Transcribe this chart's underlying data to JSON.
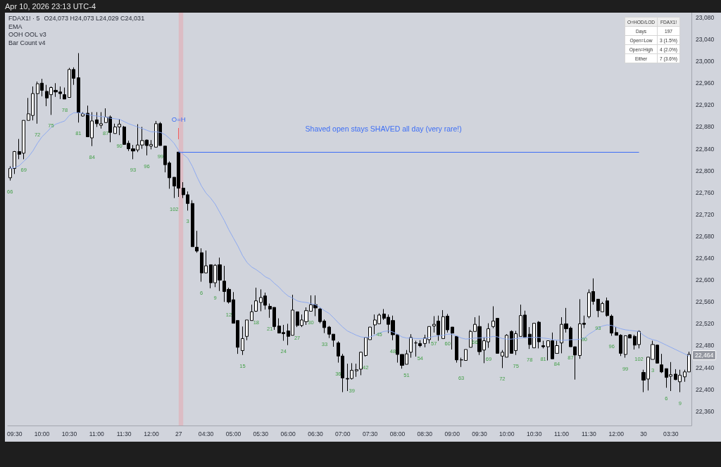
{
  "chart_data": {
    "type": "candlestick",
    "title": "FDAX1! · 5",
    "subtitle": "O24,073 H24,073 L24,029 C24,031",
    "categories": [
      null,
      "09:30",
      null,
      null,
      null,
      null,
      null,
      "10:00",
      null,
      null,
      null,
      null,
      null,
      "10:30",
      null,
      null,
      null,
      null,
      null,
      "11:00",
      null,
      null,
      null,
      null,
      null,
      "11:30",
      null,
      null,
      null,
      null,
      null,
      "12:00",
      null,
      null,
      null,
      null,
      null,
      "27",
      null,
      null,
      null,
      null,
      null,
      "04:30",
      null,
      null,
      null,
      null,
      null,
      "05:00",
      null,
      null,
      null,
      null,
      null,
      "05:30",
      null,
      null,
      null,
      null,
      null,
      "06:00",
      null,
      null,
      null,
      null,
      null,
      "06:30",
      null,
      null,
      null,
      null,
      null,
      "07:00",
      null,
      null,
      null,
      null,
      null,
      "07:30",
      null,
      null,
      null,
      null,
      null,
      "08:00",
      null,
      null,
      null,
      null,
      null,
      "08:30",
      null,
      null,
      null,
      null,
      null,
      "09:00",
      null,
      null,
      null,
      null,
      null,
      "09:30",
      null,
      null,
      null,
      null,
      null,
      "10:00",
      null,
      null,
      null,
      null,
      null,
      "10:30",
      null,
      null,
      null,
      null,
      null,
      "11:00",
      null,
      null,
      null,
      null,
      null,
      "11:30",
      null,
      null,
      null,
      null,
      null,
      "12:00",
      null,
      null,
      null,
      null,
      null,
      "30",
      null,
      null,
      null,
      null,
      null,
      "03:30",
      null,
      null,
      null,
      null
    ],
    "ohlc": [
      [
        22787,
        22808,
        22782,
        22804
      ],
      [
        22804,
        22836,
        22794,
        22835
      ],
      [
        22835,
        22858,
        22821,
        22830
      ],
      [
        22832,
        22892,
        22821,
        22892
      ],
      [
        22892,
        22933,
        22892,
        22904
      ],
      [
        22901,
        22954,
        22892,
        22941
      ],
      [
        22941,
        22963,
        22886,
        22959
      ],
      [
        22960,
        22968,
        22936,
        22947
      ],
      [
        22945,
        22957,
        22918,
        22933
      ],
      [
        22939,
        22954,
        22902,
        22952
      ],
      [
        22947,
        22960,
        22935,
        22944
      ],
      [
        22944,
        22954,
        22931,
        22941
      ],
      [
        22939,
        22952,
        22931,
        22931
      ],
      [
        22934,
        22988,
        22934,
        22985
      ],
      [
        22985,
        22989,
        22957,
        22969
      ],
      [
        22970,
        23015,
        22888,
        22906
      ],
      [
        22900,
        22907,
        22899,
        22904
      ],
      [
        22905,
        22919,
        22862,
        22862
      ],
      [
        22860,
        22907,
        22845,
        22891
      ],
      [
        22893,
        22907,
        22880,
        22886
      ],
      [
        22883,
        22907,
        22877,
        22886
      ],
      [
        22888,
        22914,
        22888,
        22898
      ],
      [
        22898,
        22901,
        22852,
        22870
      ],
      [
        22868,
        22886,
        22868,
        22880
      ],
      [
        22880,
        22894,
        22865,
        22885
      ],
      [
        22880,
        22882,
        22848,
        22848
      ],
      [
        22850,
        22855,
        22836,
        22840
      ],
      [
        22840,
        22847,
        22821,
        22836
      ],
      [
        22838,
        22885,
        22834,
        22847
      ],
      [
        22847,
        22880,
        22840,
        22855
      ],
      [
        22856,
        22857,
        22828,
        22846
      ],
      [
        22845,
        22856,
        22839,
        22848
      ],
      [
        22843,
        22891,
        22843,
        22886
      ],
      [
        22886,
        22889,
        22846,
        22846
      ],
      [
        22845,
        22845,
        22797,
        22811
      ],
      [
        22814,
        22817,
        22767,
        22787
      ],
      [
        22788,
        22788,
        22750,
        22772
      ],
      [
        22834,
        22834,
        22752,
        22768
      ],
      [
        22768,
        22779,
        22750,
        22756
      ],
      [
        22756,
        22762,
        22727,
        22740
      ],
      [
        22740,
        22746,
        22661,
        22661
      ],
      [
        22660,
        22690,
        22650,
        22653
      ],
      [
        22650,
        22658,
        22597,
        22613
      ],
      [
        22613,
        22654,
        22613,
        22626
      ],
      [
        22628,
        22628,
        22585,
        22595
      ],
      [
        22595,
        22629,
        22587,
        22627
      ],
      [
        22628,
        22641,
        22580,
        22600
      ],
      [
        22598,
        22626,
        22560,
        22579
      ],
      [
        22583,
        22586,
        22557,
        22560
      ],
      [
        22564,
        22578,
        22521,
        22521
      ],
      [
        22526,
        22526,
        22465,
        22477
      ],
      [
        22471,
        22515,
        22463,
        22493
      ],
      [
        22497,
        22527,
        22490,
        22527
      ],
      [
        22526,
        22555,
        22526,
        22542
      ],
      [
        22543,
        22586,
        22542,
        22562
      ],
      [
        22559,
        22583,
        22543,
        22568
      ],
      [
        22571,
        22577,
        22546,
        22554
      ],
      [
        22552,
        22557,
        22531,
        22547
      ],
      [
        22550,
        22550,
        22509,
        22515
      ],
      [
        22516,
        22530,
        22503,
        22503
      ],
      [
        22504,
        22518,
        22489,
        22502
      ],
      [
        22507,
        22520,
        22481,
        22497
      ],
      [
        22499,
        22573,
        22499,
        22545
      ],
      [
        22542,
        22542,
        22514,
        22517
      ],
      [
        22517,
        22537,
        22514,
        22527
      ],
      [
        22524,
        22550,
        22518,
        22544
      ],
      [
        22543,
        22572,
        22543,
        22555
      ],
      [
        22555,
        22572,
        22534,
        22549
      ],
      [
        22547,
        22549,
        22521,
        22524
      ],
      [
        22525,
        22528,
        22503,
        22513
      ],
      [
        22514,
        22516,
        22494,
        22501
      ],
      [
        22501,
        22501,
        22478,
        22490
      ],
      [
        22485,
        22488,
        22449,
        22461
      ],
      [
        22461,
        22465,
        22395,
        22421
      ],
      [
        22420,
        22447,
        22397,
        22419
      ],
      [
        22420,
        22448,
        22418,
        22435
      ],
      [
        22434,
        22447,
        22423,
        22436
      ],
      [
        22437,
        22469,
        22426,
        22468
      ],
      [
        22462,
        22495,
        22460,
        22495
      ],
      [
        22491,
        22514,
        22491,
        22514
      ],
      [
        22518,
        22537,
        22501,
        22527
      ],
      [
        22520,
        22539,
        22520,
        22536
      ],
      [
        22538,
        22547,
        22527,
        22530
      ],
      [
        22532,
        22537,
        22503,
        22519
      ],
      [
        22526,
        22535,
        22490,
        22500
      ],
      [
        22500,
        22501,
        22449,
        22464
      ],
      [
        22464,
        22464,
        22438,
        22444
      ],
      [
        22446,
        22472,
        22446,
        22465
      ],
      [
        22468,
        22501,
        22458,
        22495
      ],
      [
        22485,
        22489,
        22460,
        22485
      ],
      [
        22484,
        22490,
        22477,
        22480
      ],
      [
        22484,
        22500,
        22477,
        22494
      ],
      [
        22491,
        22515,
        22484,
        22515
      ],
      [
        22516,
        22534,
        22504,
        22519
      ],
      [
        22525,
        22535,
        22489,
        22500
      ],
      [
        22493,
        22545,
        22493,
        22533
      ],
      [
        22534,
        22538,
        22504,
        22509
      ],
      [
        22514,
        22514,
        22473,
        22503
      ],
      [
        22497,
        22497,
        22449,
        22454
      ],
      [
        22454,
        22458,
        22441,
        22454
      ],
      [
        22453,
        22473,
        22453,
        22473
      ],
      [
        22477,
        22509,
        22477,
        22506
      ],
      [
        22506,
        22532,
        22506,
        22519
      ],
      [
        22515,
        22535,
        22463,
        22469
      ],
      [
        22472,
        22495,
        22448,
        22489
      ],
      [
        22487,
        22521,
        22476,
        22511
      ],
      [
        22515,
        22552,
        22512,
        22525
      ],
      [
        22530,
        22530,
        22466,
        22466
      ],
      [
        22461,
        22472,
        22439,
        22468
      ],
      [
        22459,
        22501,
        22459,
        22499
      ],
      [
        22506,
        22508,
        22466,
        22466
      ],
      [
        22471,
        22507,
        22463,
        22502
      ],
      [
        22497,
        22555,
        22497,
        22535
      ],
      [
        22536,
        22544,
        22495,
        22495
      ],
      [
        22501,
        22514,
        22474,
        22482
      ],
      [
        22476,
        22521,
        22476,
        22521
      ],
      [
        22523,
        22525,
        22475,
        22487
      ],
      [
        22480,
        22489,
        22475,
        22478
      ],
      [
        22478,
        22489,
        22453,
        22489
      ],
      [
        22489,
        22504,
        22456,
        22456
      ],
      [
        22466,
        22489,
        22466,
        22480
      ],
      [
        22485,
        22532,
        22466,
        22519
      ],
      [
        22520,
        22549,
        22504,
        22511
      ],
      [
        22512,
        22515,
        22478,
        22478
      ],
      [
        22478,
        22478,
        22418,
        22463
      ],
      [
        22462,
        22565,
        22456,
        22520
      ],
      [
        22521,
        22535,
        22512,
        22519
      ],
      [
        22533,
        22583,
        22530,
        22577
      ],
      [
        22579,
        22603,
        22555,
        22561
      ],
      [
        22565,
        22565,
        22532,
        22544
      ],
      [
        22542,
        22560,
        22542,
        22557
      ],
      [
        22562,
        22568,
        22533,
        22535
      ],
      [
        22534,
        22537,
        22498,
        22503
      ],
      [
        22504,
        22514,
        22499,
        22499
      ],
      [
        22499,
        22501,
        22461,
        22466
      ],
      [
        22464,
        22499,
        22458,
        22498
      ],
      [
        22500,
        22501,
        22494,
        22494
      ],
      [
        22497,
        22500,
        22473,
        22481
      ],
      [
        22482,
        22508,
        22475,
        22506
      ],
      [
        22431,
        22436,
        22395,
        22417
      ],
      [
        22419,
        22459,
        22398,
        22459
      ],
      [
        22455,
        22489,
        22455,
        22482
      ],
      [
        22481,
        22482,
        22448,
        22448
      ],
      [
        22445,
        22465,
        22430,
        22432
      ],
      [
        22438,
        22438,
        22403,
        22422
      ],
      [
        22424,
        22450,
        22397,
        22427
      ],
      [
        22428,
        22437,
        22417,
        22418
      ],
      [
        22414,
        22436,
        22395,
        22426
      ],
      [
        22423,
        22436,
        22414,
        22432
      ],
      [
        22432,
        22469,
        22432,
        22464
      ]
    ],
    "colors": [
      "#ffffff",
      "#ffffff",
      "#000000",
      "#ffffff",
      "#ffffff",
      "#ffffff",
      "#ffffff",
      "#000000",
      "#000000",
      "#ffffff",
      "#000000",
      "#000000",
      "#000000",
      "#ffffff",
      "#000000",
      "#000000",
      "#ffffff",
      "#000000",
      "#ffffff",
      "#000000",
      "#ffffff",
      "#ffffff",
      "#000000",
      "#ffffff",
      "#ffffff",
      "#000000",
      "#000000",
      "#000000",
      "#ffffff",
      "#ffffff",
      "#000000",
      "#ffffff",
      "#ffffff",
      "#000000",
      "#000000",
      "#000000",
      "#000000",
      "#000000",
      "#000000",
      "#000000",
      "#000000",
      "#000000",
      "#000000",
      "#ffffff",
      "#000000",
      "#ffffff",
      "#000000",
      "#000000",
      "#000000",
      "#000000",
      "#000000",
      "#ffffff",
      "#ffffff",
      "#ffffff",
      "#ffffff",
      "#ffffff",
      "#000000",
      "#000000",
      "#000000",
      "#000000",
      "#000000",
      "#000000",
      "#ffffff",
      "#000000",
      "#ffffff",
      "#ffffff",
      "#ffffff",
      "#000000",
      "#000000",
      "#000000",
      "#000000",
      "#000000",
      "#000000",
      "#000000",
      "#000000",
      "#ffffff",
      "#ffffff",
      "#ffffff",
      "#ffffff",
      "#ffffff",
      "#ffffff",
      "#ffffff",
      "#000000",
      "#000000",
      "#000000",
      "#000000",
      "#000000",
      "#ffffff",
      "#ffffff",
      "#000000",
      "#000000",
      "#ffffff",
      "#ffffff",
      "#ffffff",
      "#000000",
      "#ffffff",
      "#000000",
      "#000000",
      "#000000",
      "#000000",
      "#ffffff",
      "#ffffff",
      "#ffffff",
      "#000000",
      "#ffffff",
      "#ffffff",
      "#ffffff",
      "#000000",
      "#ffffff",
      "#ffffff",
      "#000000",
      "#ffffff",
      "#ffffff",
      "#000000",
      "#000000",
      "#ffffff",
      "#000000",
      "#000000",
      "#ffffff",
      "#000000",
      "#ffffff",
      "#ffffff",
      "#000000",
      "#000000",
      "#000000",
      "#ffffff",
      "#000000",
      "#ffffff",
      "#000000",
      "#000000",
      "#ffffff",
      "#000000",
      "#000000",
      "#000000",
      "#000000",
      "#ffffff",
      "#000000",
      "#000000",
      "#ffffff",
      "#000000",
      "#ffffff",
      "#ffffff",
      "#000000",
      "#000000",
      "#000000",
      "#ffffff",
      "#000000",
      "#ffffff",
      "#ffffff",
      "#ffffff"
    ],
    "value_labels": [
      "66",
      null,
      null,
      "69",
      null,
      null,
      "72",
      null,
      null,
      "75",
      null,
      null,
      "78",
      null,
      null,
      "81",
      null,
      null,
      "84",
      null,
      null,
      "87",
      null,
      null,
      "90",
      null,
      null,
      "93",
      null,
      null,
      "96",
      null,
      null,
      "99",
      null,
      null,
      "102",
      null,
      null,
      "3",
      null,
      null,
      "6",
      null,
      null,
      "9",
      null,
      null,
      "12",
      null,
      null,
      "15",
      null,
      null,
      "18",
      null,
      null,
      "21",
      null,
      null,
      "24",
      null,
      null,
      "27",
      null,
      null,
      "30",
      null,
      null,
      "33",
      null,
      null,
      "36",
      null,
      null,
      "39",
      null,
      null,
      "42",
      null,
      null,
      "45",
      null,
      null,
      "48",
      null,
      null,
      "51",
      null,
      null,
      "54",
      null,
      null,
      "57",
      null,
      null,
      "60",
      null,
      null,
      "63",
      null,
      null,
      "66",
      null,
      null,
      "69",
      null,
      null,
      "72",
      null,
      null,
      "75",
      null,
      null,
      "78",
      null,
      null,
      "81",
      null,
      null,
      "84",
      null,
      null,
      "87",
      null,
      null,
      "90",
      null,
      null,
      "93",
      null,
      null,
      "96",
      null,
      null,
      "99",
      null,
      null,
      "102",
      null,
      null,
      "3",
      null,
      null,
      "6",
      null,
      null,
      "9",
      null,
      null
    ],
    "series": [
      {
        "type": "line",
        "color": "#8eaaf0",
        "marker": "none",
        "values": [
          22804,
          22806,
          22809,
          22817,
          22825,
          22836,
          22850,
          22862,
          22870,
          22879,
          22885,
          22888,
          22891,
          22901,
          22906,
          22906,
          22905,
          22903,
          22901,
          22900,
          22899,
          22898,
          22896,
          22895,
          22894,
          22890,
          22886,
          22883,
          22880,
          22877,
          22874,
          22871,
          22871,
          22870,
          22866,
          22859,
          22850,
          22837,
          22830,
          22823,
          22808,
          22789,
          22772,
          22759,
          22750,
          22739,
          22724,
          22709,
          22692,
          22677,
          22662,
          22645,
          22632,
          22624,
          22619,
          22613,
          22606,
          22602,
          22594,
          22587,
          22578,
          22571,
          22567,
          22562,
          22560,
          22559,
          22557,
          22555,
          22550,
          22544,
          22539,
          22531,
          22522,
          22514,
          22507,
          22503,
          22499,
          22496,
          22495,
          22496,
          22499,
          22503,
          22506,
          22507,
          22505,
          22501,
          22496,
          22494,
          22494,
          22493,
          22493,
          22493,
          22495,
          22497,
          22498,
          22499,
          22501,
          22501,
          22498,
          22494,
          22492,
          22493,
          22494,
          22494,
          22495,
          22495,
          22497,
          22496,
          22493,
          22492,
          22492,
          22493,
          22494,
          22495,
          22495,
          22495,
          22495,
          22494,
          22493,
          22491,
          22490,
          22490,
          22490,
          22491,
          22491,
          22492,
          22494,
          22501,
          22506,
          22512,
          22516,
          22518,
          22517,
          22514,
          22511,
          22509,
          22508,
          22507,
          22506,
          22499,
          22494,
          22491,
          22489,
          22485,
          22481,
          22477,
          22473,
          22469,
          22465,
          22461
        ]
      }
    ],
    "ylim": [
      22334,
      23089
    ],
    "yticks": [
      {
        "value": 23080,
        "label": "23,080"
      },
      {
        "value": 23040,
        "label": "23,040"
      },
      {
        "value": 23000,
        "label": "23,000"
      },
      {
        "value": 22960,
        "label": "22,960"
      },
      {
        "value": 22920,
        "label": "22,920"
      },
      {
        "value": 22880,
        "label": "22,880"
      },
      {
        "value": 22840,
        "label": "22,840"
      },
      {
        "value": 22800,
        "label": "22,800"
      },
      {
        "value": 22760,
        "label": "22,760"
      },
      {
        "value": 22720,
        "label": "22,720"
      },
      {
        "value": 22680,
        "label": "22,680"
      },
      {
        "value": 22640,
        "label": "22,640"
      },
      {
        "value": 22600,
        "label": "22,600"
      },
      {
        "value": 22560,
        "label": "22,560"
      },
      {
        "value": 22520,
        "label": "22,520"
      },
      {
        "value": 22480,
        "label": "22,480"
      },
      {
        "value": 22440,
        "label": "22,440"
      },
      {
        "value": 22400,
        "label": "22,400"
      },
      {
        "value": 22360,
        "label": "22,360"
      }
    ],
    "bands": [
      {
        "axis": "x",
        "from": "27",
        "to": "27",
        "color": "#dcbcc4"
      }
    ],
    "ref_lines": [
      {
        "axis": "y",
        "value": 22834,
        "label": "Shaved open stays SHAVED all day (very rare!)",
        "color": "#3d6ef5"
      }
    ],
    "annotations": [
      "Apr 10, 2026 23:13 UTC-4",
      "EMA",
      "OOH OOL v3",
      "Bar Count v4",
      "O=HOD/LOD",
      "FDAX1!",
      "Days",
      "197",
      "Open=Low",
      "3 (1.5%)",
      "Open=High",
      "4 (2.0%)",
      "Either",
      "7 (3.6%)",
      {
        "text": "O=H",
        "x": "27",
        "y": 22894
      },
      {
        "text": "22,464",
        "y": 22464
      }
    ]
  }
}
